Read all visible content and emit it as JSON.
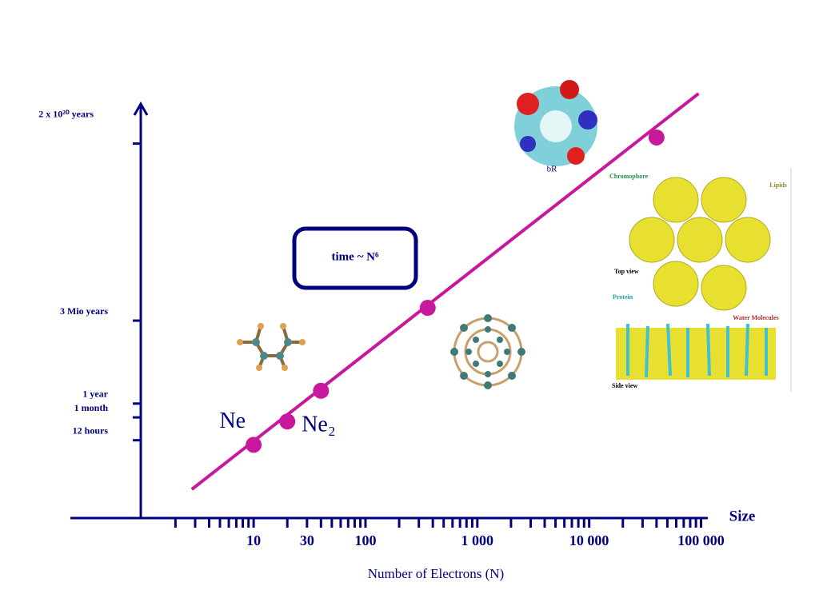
{
  "chart_data": {
    "type": "line",
    "xscale": "log",
    "yscale": "log",
    "x_label": "Number of Electrons (N)",
    "x_axis_end_label": "Size",
    "xlim": [
      0.23,
      115000
    ],
    "ylim": [
      1.15e-09,
      2.5e+23
    ],
    "xticks": [
      10,
      30,
      100,
      {
        "value": 1000,
        "label": "1 000"
      },
      {
        "value": 10000,
        "label": "10 000"
      },
      {
        "value": 100000,
        "label": "100 000"
      }
    ],
    "x_minor_ticks": [
      2,
      3,
      4,
      5,
      6,
      7,
      8,
      9,
      20,
      40,
      50,
      60,
      70,
      80,
      90,
      200,
      300,
      400,
      500,
      600,
      700,
      800,
      900,
      2000,
      3000,
      4000,
      5000,
      6000,
      7000,
      8000,
      9000,
      20000,
      30000,
      40000,
      50000,
      60000,
      70000,
      80000,
      90000
    ],
    "yticks": [
      {
        "value": 0.00137,
        "label": "12 hours"
      },
      {
        "value": 0.0833,
        "label": "1 month"
      },
      {
        "value": 1,
        "label": "1 year"
      },
      {
        "value": 3000000,
        "label": "3 Mio years"
      },
      {
        "value": 2e+20,
        "label": "2 x 10²⁰ years"
      }
    ],
    "axis_color": "#000080",
    "series": [
      {
        "style": "line",
        "color": "#c8189c",
        "x": [
          2.8,
          95000
        ],
        "values": [
          2e-07,
          1.6e+24
        ]
      },
      {
        "style": "markers",
        "color": "#c8189c",
        "x": [
          10,
          20,
          40,
          360,
          40000
        ],
        "values": [
          0.0006,
          0.04,
          10,
          30000000,
          6e+20
        ],
        "point_labels": [
          "Ne",
          "Ne₂",
          null,
          null,
          null
        ]
      }
    ],
    "annotation": "time ~ N⁶",
    "image_labels": [
      "bR",
      "Chromophore",
      "Lipids",
      "Top view",
      "Protein",
      "Water Molecules",
      "Side view"
    ]
  }
}
